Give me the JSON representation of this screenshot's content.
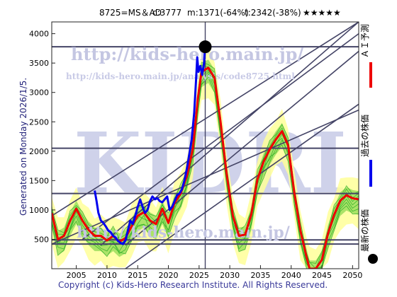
{
  "header": {
    "ticker": "8725=MS＆AD",
    "current": "c:3777",
    "mid": "m:1371(-64%)",
    "target": "t:2342(-38%)",
    "stars": "★★★★★"
  },
  "side_labels": {
    "ai_forecast": "ＡＩ予測",
    "past_price": "過去の株価",
    "latest_price": "最新の株価"
  },
  "generated_label": "Generated on Monday 2026/1/5.",
  "copyright": "Copyright (c) Kids-Hero Research Institute. All Rights Reserved.",
  "watermarks": {
    "big": "KIDRI",
    "url": "http://kids-hero.main.jp/",
    "url_small": "http://kids-hero.main.jp/analysis/code8725.html",
    "url_bottom": "http://kids-hero.main.jp/"
  },
  "colors": {
    "forecast": "#ee0000",
    "history": "#0000ee",
    "band_light": "#ffff99",
    "band_green": "#66cc33",
    "band_line": "#22aa22",
    "frame": "#444466",
    "marker": "#000000"
  },
  "chart_data": {
    "type": "line",
    "title": "8725=MS＆AD c:3777 m:1371(-64%) t:2342(-38%) ★★★★★",
    "xlim": [
      2001,
      2051
    ],
    "ylim": [
      0,
      4200
    ],
    "x_ticks": [
      2005,
      2010,
      2015,
      2020,
      2025,
      2030,
      2035,
      2040,
      2045,
      2050
    ],
    "y_ticks": [
      500,
      1000,
      1500,
      2000,
      2500,
      3000,
      3500,
      4000
    ],
    "grid": false,
    "horizontal_lines": [
      3777,
      2050,
      1280,
      490,
      420
    ],
    "current_marker": {
      "x": 2026.0,
      "y": 3777
    },
    "vertical_line_x": 2026.0,
    "diagonal_lines": [
      {
        "from": [
          2009,
          400
        ],
        "to": [
          2051,
          4200
        ]
      },
      {
        "from": [
          2013,
          400
        ],
        "to": [
          2051,
          3700
        ]
      },
      {
        "from": [
          2006,
          500
        ],
        "to": [
          2051,
          4000
        ]
      },
      {
        "from": [
          2001,
          420
        ],
        "to": [
          2051,
          2700
        ]
      },
      {
        "from": [
          2001,
          900
        ],
        "to": [
          2051,
          4200
        ]
      },
      {
        "from": [
          2013,
          0
        ],
        "to": [
          2051,
          2800
        ]
      }
    ],
    "series": [
      {
        "name": "過去の株価",
        "points": [
          [
            2008.0,
            1330
          ],
          [
            2008.3,
            1150
          ],
          [
            2008.6,
            950
          ],
          [
            2009.0,
            820
          ],
          [
            2009.4,
            780
          ],
          [
            2009.8,
            720
          ],
          [
            2010.2,
            650
          ],
          [
            2010.6,
            620
          ],
          [
            2011.0,
            560
          ],
          [
            2011.4,
            530
          ],
          [
            2011.8,
            470
          ],
          [
            2012.2,
            440
          ],
          [
            2012.6,
            420
          ],
          [
            2013.0,
            480
          ],
          [
            2013.4,
            650
          ],
          [
            2013.8,
            820
          ],
          [
            2014.2,
            760
          ],
          [
            2014.6,
            900
          ],
          [
            2015.0,
            1050
          ],
          [
            2015.4,
            1180
          ],
          [
            2015.8,
            1050
          ],
          [
            2016.2,
            950
          ],
          [
            2016.6,
            1000
          ],
          [
            2017.0,
            1150
          ],
          [
            2017.4,
            1230
          ],
          [
            2017.8,
            1180
          ],
          [
            2018.2,
            1200
          ],
          [
            2018.6,
            1150
          ],
          [
            2019.0,
            1130
          ],
          [
            2019.4,
            1180
          ],
          [
            2019.8,
            1230
          ],
          [
            2020.2,
            1000
          ],
          [
            2020.6,
            1050
          ],
          [
            2021.0,
            1150
          ],
          [
            2021.4,
            1250
          ],
          [
            2021.8,
            1280
          ],
          [
            2022.2,
            1350
          ],
          [
            2022.6,
            1500
          ],
          [
            2023.0,
            1700
          ],
          [
            2023.4,
            1950
          ],
          [
            2023.8,
            2200
          ],
          [
            2024.2,
            2650
          ],
          [
            2024.5,
            3200
          ],
          [
            2024.7,
            3600
          ],
          [
            2024.9,
            3350
          ],
          [
            2025.2,
            3450
          ],
          [
            2025.5,
            3300
          ],
          [
            2025.8,
            3500
          ],
          [
            2026.0,
            3777
          ]
        ]
      },
      {
        "name": "ＡＩ予測",
        "points": [
          [
            2001.0,
            950
          ],
          [
            2002.0,
            500
          ],
          [
            2003.0,
            560
          ],
          [
            2004.0,
            820
          ],
          [
            2005.0,
            1020
          ],
          [
            2006.0,
            820
          ],
          [
            2007.0,
            660
          ],
          [
            2008.0,
            560
          ],
          [
            2009.0,
            560
          ],
          [
            2010.0,
            480
          ],
          [
            2011.0,
            560
          ],
          [
            2012.0,
            460
          ],
          [
            2013.0,
            520
          ],
          [
            2014.0,
            720
          ],
          [
            2015.0,
            900
          ],
          [
            2016.0,
            960
          ],
          [
            2017.0,
            820
          ],
          [
            2018.0,
            760
          ],
          [
            2019.0,
            1020
          ],
          [
            2020.0,
            780
          ],
          [
            2021.0,
            1120
          ],
          [
            2022.0,
            1280
          ],
          [
            2023.0,
            1570
          ],
          [
            2024.0,
            2050
          ],
          [
            2024.8,
            2900
          ],
          [
            2025.4,
            3350
          ],
          [
            2026.5,
            3420
          ],
          [
            2027.5,
            3250
          ],
          [
            2028.5,
            2500
          ],
          [
            2029.5,
            1600
          ],
          [
            2030.5,
            900
          ],
          [
            2031.5,
            560
          ],
          [
            2032.5,
            580
          ],
          [
            2033.5,
            920
          ],
          [
            2034.5,
            1520
          ],
          [
            2035.5,
            1820
          ],
          [
            2036.5,
            2030
          ],
          [
            2037.5,
            2200
          ],
          [
            2038.5,
            2340
          ],
          [
            2039.5,
            2100
          ],
          [
            2040.5,
            1300
          ],
          [
            2041.5,
            650
          ],
          [
            2042.5,
            200
          ],
          [
            2043.0,
            0
          ],
          [
            2044.0,
            0
          ],
          [
            2045.0,
            150
          ],
          [
            2046.0,
            600
          ],
          [
            2047.0,
            920
          ],
          [
            2048.0,
            1160
          ],
          [
            2049.0,
            1250
          ],
          [
            2050.0,
            1200
          ],
          [
            2051.0,
            1180
          ]
        ]
      }
    ]
  }
}
